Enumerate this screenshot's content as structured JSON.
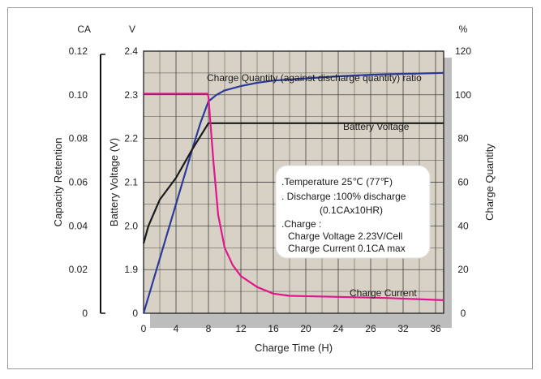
{
  "chart_data": {
    "type": "line",
    "xlabel": "Charge Time (H)",
    "x_ticks": [
      "0",
      "4",
      "8",
      "12",
      "16",
      "20",
      "24",
      "26",
      "32",
      "36"
    ],
    "xlim": [
      0,
      37
    ],
    "axes": {
      "capacity": {
        "label": "Capacity Retention",
        "unit": "CA",
        "ticks": [
          "0",
          "0.02",
          "0.04",
          "0.06",
          "0.08",
          "0.10",
          "0.12"
        ],
        "ylim": [
          0,
          0.12
        ]
      },
      "voltage": {
        "label": "Battery Voltage (V)",
        "unit": "V",
        "ticks": [
          "0",
          "1.9",
          "2.0",
          "2.1",
          "2.2",
          "2.3",
          "2.4"
        ]
      },
      "quantity": {
        "label": "Charge Quantity",
        "unit": "%",
        "ticks": [
          "0",
          "20",
          "40",
          "60",
          "80",
          "100",
          "120"
        ],
        "ylim": [
          0,
          120
        ]
      }
    },
    "series": [
      {
        "name": "Charge Quantity (against discharge quantity) ratio",
        "axis": "quantity",
        "color": "#2b3a9a",
        "points": [
          [
            0,
            0
          ],
          [
            2,
            25
          ],
          [
            4,
            50
          ],
          [
            6,
            75
          ],
          [
            7,
            87
          ],
          [
            8,
            97
          ],
          [
            9,
            100
          ],
          [
            10,
            102
          ],
          [
            12,
            104
          ],
          [
            14,
            105.5
          ],
          [
            16,
            106.5
          ],
          [
            20,
            107.5
          ],
          [
            24,
            108.5
          ],
          [
            28,
            109.2
          ],
          [
            32,
            109.6
          ],
          [
            37,
            110
          ]
        ]
      },
      {
        "name": "Battery Voltage",
        "axis": "quantity",
        "color": "#1a1a1a",
        "points": [
          [
            0,
            32
          ],
          [
            0.6,
            40
          ],
          [
            2,
            52
          ],
          [
            4,
            62
          ],
          [
            6,
            75
          ],
          [
            8,
            87
          ],
          [
            37,
            87
          ]
        ]
      },
      {
        "name": "Charge Current",
        "axis": "quantity",
        "color": "#e0178c",
        "points": [
          [
            0,
            100.5
          ],
          [
            7.9,
            100.5
          ],
          [
            8,
            99
          ],
          [
            8.6,
            70
          ],
          [
            9.2,
            45
          ],
          [
            10,
            30
          ],
          [
            11,
            22
          ],
          [
            12,
            17
          ],
          [
            14,
            12
          ],
          [
            16,
            9
          ],
          [
            18,
            8
          ],
          [
            24,
            7.5
          ],
          [
            30,
            7
          ],
          [
            37,
            6
          ]
        ]
      }
    ],
    "annotation": {
      "lines": [
        ".Temperature 25℃ (77℉)",
        ". Discharge :100% discharge",
        "(0.1CAx10HR)",
        ".Charge :",
        "Charge Voltage 2.23V/Cell",
        "Charge Current 0.1CA max"
      ]
    },
    "grid": true,
    "colors": {
      "plot_bg": "#d8d2c6",
      "shadow": "#bdbdbd",
      "grid": "#2a2a2a"
    }
  }
}
